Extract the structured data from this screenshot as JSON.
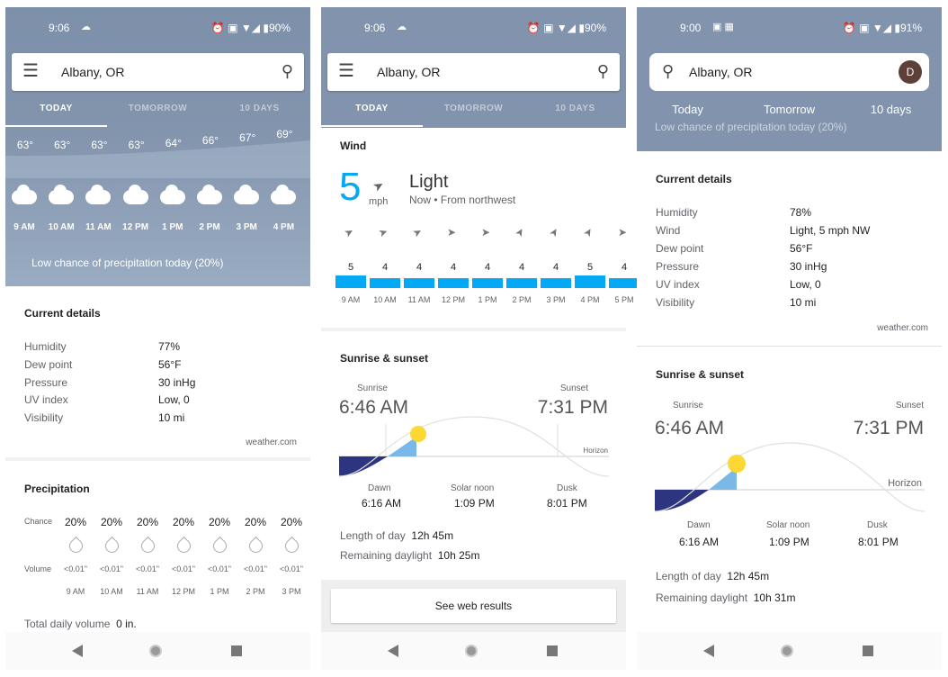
{
  "panel1": {
    "status": {
      "time": "9:06",
      "battery": "90%"
    },
    "search": {
      "city": "Albany, OR"
    },
    "tabs": [
      "TODAY",
      "TOMORROW",
      "10 DAYS"
    ],
    "hourly": [
      {
        "temp": "63°",
        "time": "9 AM"
      },
      {
        "temp": "63°",
        "time": "10 AM"
      },
      {
        "temp": "63°",
        "time": "11 AM"
      },
      {
        "temp": "63°",
        "time": "12 PM"
      },
      {
        "temp": "64°",
        "time": "1 PM"
      },
      {
        "temp": "66°",
        "time": "2 PM"
      },
      {
        "temp": "67°",
        "time": "3 PM"
      },
      {
        "temp": "69°",
        "time": "4 PM"
      }
    ],
    "precip_summary": "Low chance of precipitation today (20%)",
    "current_details": {
      "title": "Current details",
      "rows": [
        {
          "label": "Humidity",
          "value": "77%"
        },
        {
          "label": "Dew point",
          "value": "56°F"
        },
        {
          "label": "Pressure",
          "value": "30 inHg"
        },
        {
          "label": "UV index",
          "value": "Low, 0"
        },
        {
          "label": "Visibility",
          "value": "10 mi"
        }
      ],
      "source": "weather.com"
    },
    "precipitation": {
      "title": "Precipitation",
      "chance_label": "Chance",
      "volume_label": "Volume",
      "chances": [
        "20%",
        "20%",
        "20%",
        "20%",
        "20%",
        "20%",
        "20%"
      ],
      "volumes": [
        "<0.01\"",
        "<0.01\"",
        "<0.01\"",
        "<0.01\"",
        "<0.01\"",
        "<0.01\"",
        "<0.01\""
      ],
      "times": [
        "9 AM",
        "10 AM",
        "11 AM",
        "12 PM",
        "1 PM",
        "2 PM",
        "3 PM"
      ],
      "total_label": "Total daily volume",
      "total_value": "0 in."
    }
  },
  "panel2": {
    "status": {
      "time": "9:06",
      "battery": "90%"
    },
    "search": {
      "city": "Albany, OR"
    },
    "tabs": [
      "TODAY",
      "TOMORROW",
      "10 DAYS"
    ],
    "wind": {
      "title": "Wind",
      "speed": "5",
      "unit": "mph",
      "desc": "Light",
      "sub": "Now • From northwest",
      "hours": [
        {
          "speed": "5",
          "time": "9 AM",
          "level": 5
        },
        {
          "speed": "4",
          "time": "10 AM",
          "level": 4
        },
        {
          "speed": "4",
          "time": "11 AM",
          "level": 4
        },
        {
          "speed": "4",
          "time": "12 PM",
          "level": 4
        },
        {
          "speed": "4",
          "time": "1 PM",
          "level": 4
        },
        {
          "speed": "4",
          "time": "2 PM",
          "level": 4
        },
        {
          "speed": "4",
          "time": "3 PM",
          "level": 4
        },
        {
          "speed": "5",
          "time": "4 PM",
          "level": 5
        },
        {
          "speed": "4",
          "time": "5 PM",
          "level": 4
        }
      ]
    },
    "sun": {
      "title": "Sunrise & sunset",
      "sunrise_label": "Sunrise",
      "sunrise": "6:46 AM",
      "sunset_label": "Sunset",
      "sunset": "7:31 PM",
      "horizon": "Horizon",
      "dawn_label": "Dawn",
      "dawn": "6:16 AM",
      "noon_label": "Solar noon",
      "noon": "1:09 PM",
      "dusk_label": "Dusk",
      "dusk": "8:01 PM",
      "length_label": "Length of day",
      "length": "12h 45m",
      "remaining_label": "Remaining daylight",
      "remaining": "10h 25m"
    },
    "web_button": "See web results"
  },
  "panel3": {
    "status": {
      "time": "9:00",
      "battery": "91%"
    },
    "search": {
      "city": "Albany, OR",
      "avatar": "D"
    },
    "tabs": [
      "Today",
      "Tomorrow",
      "10 days"
    ],
    "cut_text": "Low chance of precipitation today (20%)",
    "current_details": {
      "title": "Current details",
      "rows": [
        {
          "label": "Humidity",
          "value": "78%"
        },
        {
          "label": "Wind",
          "value": "Light, 5 mph NW"
        },
        {
          "label": "Dew point",
          "value": "56°F"
        },
        {
          "label": "Pressure",
          "value": "30 inHg"
        },
        {
          "label": "UV index",
          "value": "Low, 0"
        },
        {
          "label": "Visibility",
          "value": "10 mi"
        }
      ],
      "source": "weather.com"
    },
    "sun": {
      "title": "Sunrise & sunset",
      "sunrise_label": "Sunrise",
      "sunrise": "6:46 AM",
      "sunset_label": "Sunset",
      "sunset": "7:31 PM",
      "horizon": "Horizon",
      "dawn_label": "Dawn",
      "dawn": "6:16 AM",
      "noon_label": "Solar noon",
      "noon": "1:09 PM",
      "dusk_label": "Dusk",
      "dusk": "8:01 PM",
      "length_label": "Length of day",
      "length": "12h 45m",
      "remaining_label": "Remaining daylight",
      "remaining": "10h 31m"
    }
  },
  "colors": {
    "header": "#8a9cb3",
    "accent": "#03a9f4",
    "night": "#2e3580",
    "sun": "#fdd835",
    "daylight": "#7ab8e8"
  }
}
